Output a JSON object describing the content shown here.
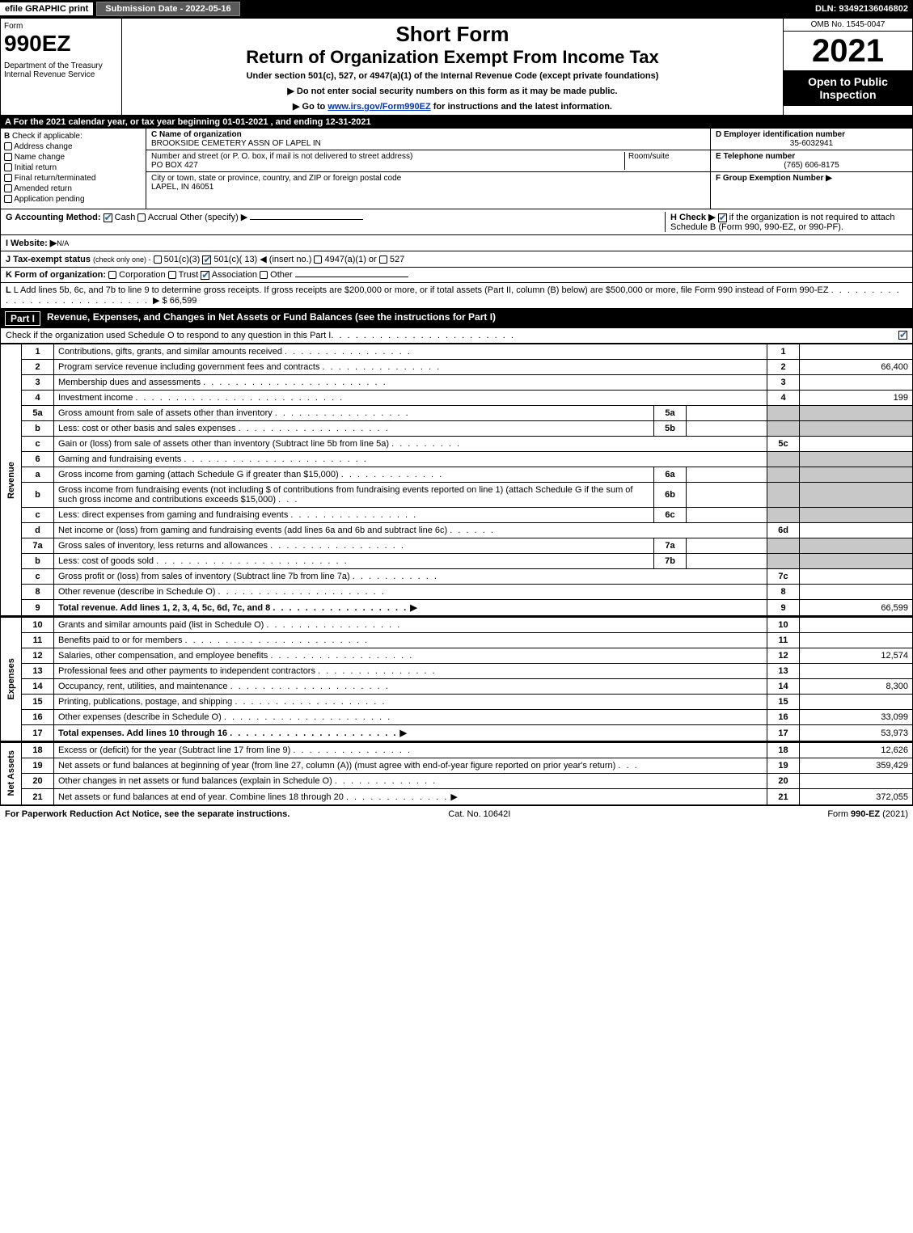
{
  "topbar": {
    "efile": "efile GRAPHIC print",
    "subdate": "Submission Date - 2022-05-16",
    "dln": "DLN: 93492136046802"
  },
  "header": {
    "form_label": "Form",
    "form_no": "990EZ",
    "dept": "Department of the Treasury\nInternal Revenue Service",
    "short": "Short Form",
    "ret": "Return of Organization Exempt From Income Tax",
    "under": "Under section 501(c), 527, or 4947(a)(1) of the Internal Revenue Code (except private foundations)",
    "note1": "▶ Do not enter social security numbers on this form as it may be made public.",
    "note2_pre": "▶ Go to ",
    "note2_link": "www.irs.gov/Form990EZ",
    "note2_post": " for instructions and the latest information.",
    "omb": "OMB No. 1545-0047",
    "year": "2021",
    "open": "Open to Public Inspection"
  },
  "lineA": "A  For the 2021 calendar year, or tax year beginning 01-01-2021 , and ending 12-31-2021",
  "B": {
    "title": "B",
    "sub": "Check if applicable:",
    "opts": [
      "Address change",
      "Name change",
      "Initial return",
      "Final return/terminated",
      "Amended return",
      "Application pending"
    ]
  },
  "C": {
    "lbl_name": "C Name of organization",
    "name": "BROOKSIDE CEMETERY ASSN OF LAPEL IN",
    "lbl_addr": "Number and street (or P. O. box, if mail is not delivered to street address)",
    "room": "Room/suite",
    "addr": "PO BOX 427",
    "lbl_city": "City or town, state or province, country, and ZIP or foreign postal code",
    "city": "LAPEL, IN  46051"
  },
  "D": {
    "lbl": "D Employer identification number",
    "val": "35-6032941",
    "E_lbl": "E Telephone number",
    "E_val": "(765) 606-8175",
    "F_lbl": "F Group Exemption Number ▶"
  },
  "G": {
    "lbl": "G Accounting Method:",
    "cash": "Cash",
    "accrual": "Accrual",
    "other": "Other (specify) ▶"
  },
  "H": {
    "txt": "H  Check ▶",
    "txt2": "if the organization is not required to attach Schedule B (Form 990, 990-EZ, or 990-PF)."
  },
  "I": {
    "lbl": "I Website: ▶",
    "val": "N/A"
  },
  "J": {
    "lbl": "J Tax-exempt status",
    "note": "(check only one) -",
    "a": "501(c)(3)",
    "b": "501(c)( 13) ◀ (insert no.)",
    "c": "4947(a)(1) or",
    "d": "527"
  },
  "K": {
    "lbl": "K Form of organization:",
    "a": "Corporation",
    "b": "Trust",
    "c": "Association",
    "d": "Other"
  },
  "L": {
    "txt": "L Add lines 5b, 6c, and 7b to line 9 to determine gross receipts. If gross receipts are $200,000 or more, or if total assets (Part II, column (B) below) are $500,000 or more, file Form 990 instead of Form 990-EZ",
    "val": "▶ $ 66,599"
  },
  "part1": {
    "title": "Part I",
    "desc": "Revenue, Expenses, and Changes in Net Assets or Fund Balances (see the instructions for Part I)",
    "sub": "Check if the organization used Schedule O to respond to any question in this Part I"
  },
  "sections": {
    "rev": "Revenue",
    "exp": "Expenses",
    "na": "Net Assets"
  },
  "rows": [
    {
      "n": "1",
      "d": "Contributions, gifts, grants, and similar amounts received",
      "rn": "1",
      "v": ""
    },
    {
      "n": "2",
      "d": "Program service revenue including government fees and contracts",
      "rn": "2",
      "v": "66,400"
    },
    {
      "n": "3",
      "d": "Membership dues and assessments",
      "rn": "3",
      "v": ""
    },
    {
      "n": "4",
      "d": "Investment income",
      "rn": "4",
      "v": "199"
    },
    {
      "n": "5a",
      "d": "Gross amount from sale of assets other than inventory",
      "sub": "5a",
      "sv": "",
      "gray": true
    },
    {
      "n": "b",
      "d": "Less: cost or other basis and sales expenses",
      "sub": "5b",
      "sv": "",
      "gray": true
    },
    {
      "n": "c",
      "d": "Gain or (loss) from sale of assets other than inventory (Subtract line 5b from line 5a)",
      "rn": "5c",
      "v": ""
    },
    {
      "n": "6",
      "d": "Gaming and fundraising events",
      "gray": true,
      "noval": true
    },
    {
      "n": "a",
      "d": "Gross income from gaming (attach Schedule G if greater than $15,000)",
      "sub": "6a",
      "sv": "",
      "gray": true
    },
    {
      "n": "b",
      "d": "Gross income from fundraising events (not including $                    of contributions from fundraising events reported on line 1) (attach Schedule G if the sum of such gross income and contributions exceeds $15,000)",
      "sub": "6b",
      "sv": "",
      "gray": true
    },
    {
      "n": "c",
      "d": "Less: direct expenses from gaming and fundraising events",
      "sub": "6c",
      "sv": "",
      "gray": true
    },
    {
      "n": "d",
      "d": "Net income or (loss) from gaming and fundraising events (add lines 6a and 6b and subtract line 6c)",
      "rn": "6d",
      "v": ""
    },
    {
      "n": "7a",
      "d": "Gross sales of inventory, less returns and allowances",
      "sub": "7a",
      "sv": "",
      "gray": true
    },
    {
      "n": "b",
      "d": "Less: cost of goods sold",
      "sub": "7b",
      "sv": "",
      "gray": true
    },
    {
      "n": "c",
      "d": "Gross profit or (loss) from sales of inventory (Subtract line 7b from line 7a)",
      "rn": "7c",
      "v": ""
    },
    {
      "n": "8",
      "d": "Other revenue (describe in Schedule O)",
      "rn": "8",
      "v": ""
    },
    {
      "n": "9",
      "d": "Total revenue. Add lines 1, 2, 3, 4, 5c, 6d, 7c, and 8",
      "rn": "9",
      "v": "66,599",
      "bold": true,
      "arrow": true
    }
  ],
  "exp_rows": [
    {
      "n": "10",
      "d": "Grants and similar amounts paid (list in Schedule O)",
      "rn": "10",
      "v": ""
    },
    {
      "n": "11",
      "d": "Benefits paid to or for members",
      "rn": "11",
      "v": ""
    },
    {
      "n": "12",
      "d": "Salaries, other compensation, and employee benefits",
      "rn": "12",
      "v": "12,574"
    },
    {
      "n": "13",
      "d": "Professional fees and other payments to independent contractors",
      "rn": "13",
      "v": ""
    },
    {
      "n": "14",
      "d": "Occupancy, rent, utilities, and maintenance",
      "rn": "14",
      "v": "8,300"
    },
    {
      "n": "15",
      "d": "Printing, publications, postage, and shipping",
      "rn": "15",
      "v": ""
    },
    {
      "n": "16",
      "d": "Other expenses (describe in Schedule O)",
      "rn": "16",
      "v": "33,099"
    },
    {
      "n": "17",
      "d": "Total expenses. Add lines 10 through 16",
      "rn": "17",
      "v": "53,973",
      "bold": true,
      "arrow": true
    }
  ],
  "na_rows": [
    {
      "n": "18",
      "d": "Excess or (deficit) for the year (Subtract line 17 from line 9)",
      "rn": "18",
      "v": "12,626"
    },
    {
      "n": "19",
      "d": "Net assets or fund balances at beginning of year (from line 27, column (A)) (must agree with end-of-year figure reported on prior year's return)",
      "rn": "19",
      "v": "359,429"
    },
    {
      "n": "20",
      "d": "Other changes in net assets or fund balances (explain in Schedule O)",
      "rn": "20",
      "v": ""
    },
    {
      "n": "21",
      "d": "Net assets or fund balances at end of year. Combine lines 18 through 20",
      "rn": "21",
      "v": "372,055",
      "arrow": true
    }
  ],
  "footer": {
    "l": "For Paperwork Reduction Act Notice, see the separate instructions.",
    "m": "Cat. No. 10642I",
    "r": "Form 990-EZ (2021)"
  }
}
